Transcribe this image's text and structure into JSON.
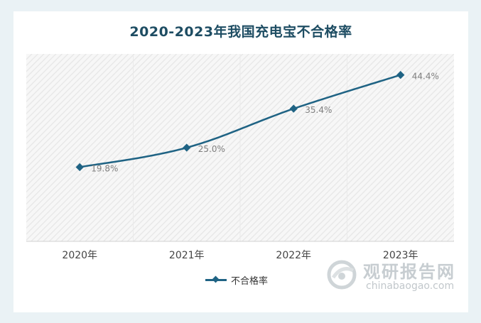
{
  "chart_data": {
    "type": "line",
    "title": "2020-2023年我国充电宝不合格率",
    "categories": [
      "2020年",
      "2021年",
      "2022年",
      "2023年"
    ],
    "series": [
      {
        "name": "不合格率",
        "values": [
          19.8,
          25.0,
          35.4,
          44.4
        ],
        "labels": [
          "19.8%",
          "25.0%",
          "35.4%",
          "44.4%"
        ]
      }
    ],
    "ylim": [
      0,
      50
    ],
    "xlabel": "",
    "ylabel": "",
    "legend_position": "bottom",
    "grid": "vertical-bands",
    "colors": {
      "line": "#1f6384",
      "title": "#1e4d63",
      "labels": "#7f7f7f"
    }
  },
  "watermark": {
    "name_cn": "观研报告网",
    "name_en": "chinabaogao.com"
  }
}
